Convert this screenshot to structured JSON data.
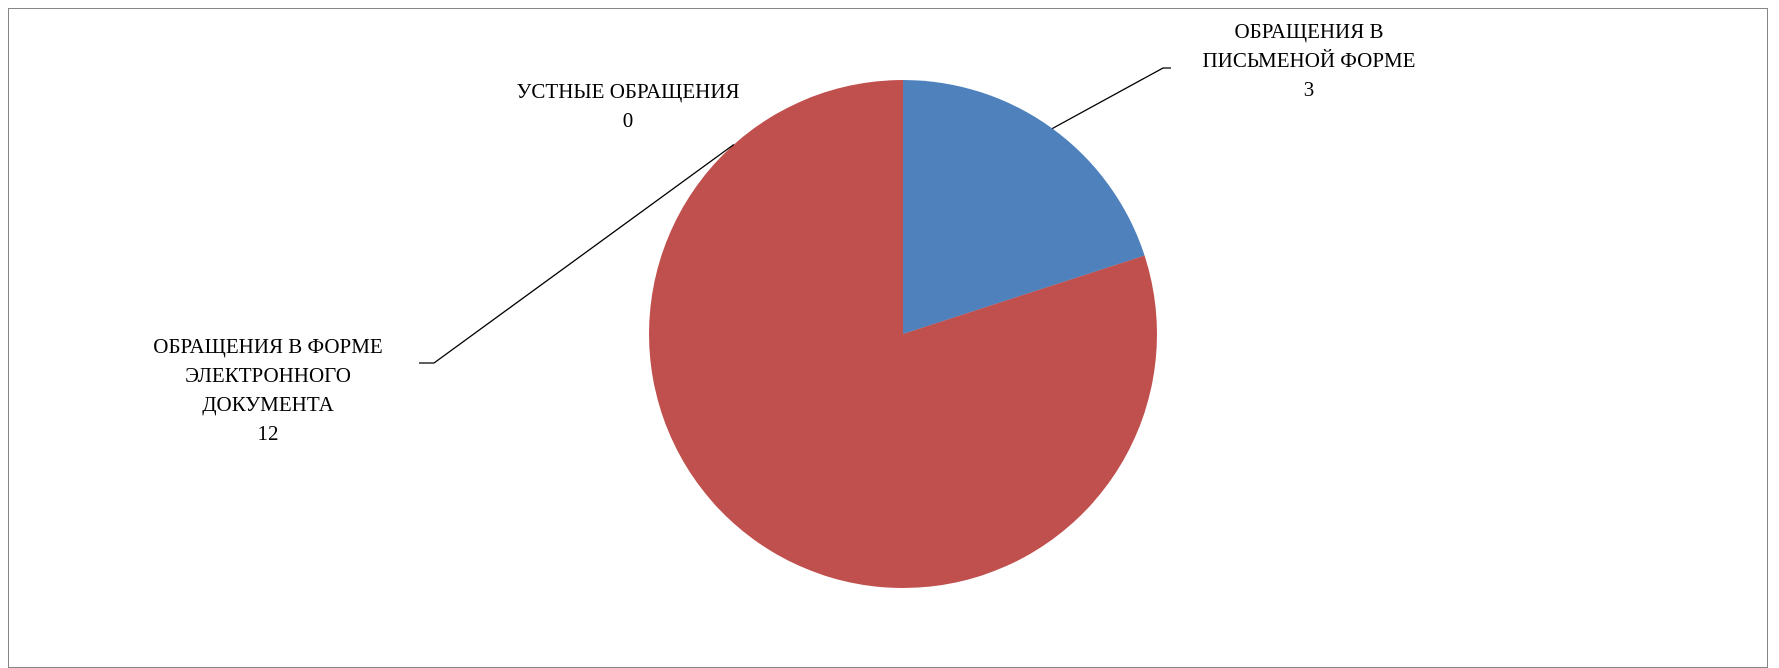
{
  "chart_data": {
    "type": "pie",
    "title": "",
    "start_angle_deg": 0,
    "direction": "clockwise",
    "slices": [
      {
        "label_lines": [
          "ОБРАЩЕНИЯ В",
          "ПИСЬМЕНОЙ ФОРМЕ"
        ],
        "value": 3,
        "value_text": "3",
        "color": "#4F81BD"
      },
      {
        "label_lines": [
          "ОБРАЩЕНИЯ В ФОРМЕ",
          "ЭЛЕКТРОННОГО",
          "ДОКУМЕНТА"
        ],
        "value": 12,
        "value_text": "12",
        "color": "#C0504D"
      },
      {
        "label_lines": [
          "УСТНЫЕ ОБРАЩЕНИЯ"
        ],
        "value": 0,
        "value_text": "0",
        "color": "#9BBB59"
      }
    ],
    "legend": "none",
    "data_labels": "category and value with leader lines"
  }
}
